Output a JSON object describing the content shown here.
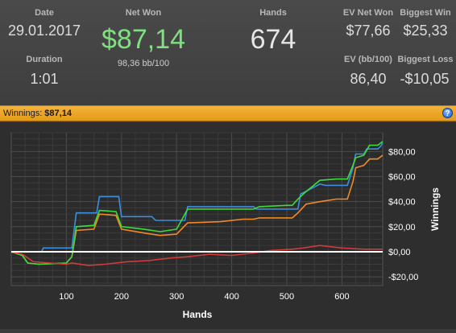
{
  "stats": {
    "date": {
      "label": "Date",
      "value": "29.01.2017"
    },
    "duration": {
      "label": "Duration",
      "value": "1:01"
    },
    "net_won": {
      "label": "Net Won",
      "value": "$87,14",
      "sub": "98,36 bb/100"
    },
    "hands": {
      "label": "Hands",
      "value": "674"
    },
    "ev_net_won": {
      "label": "EV Net Won",
      "value": "$77,66"
    },
    "biggest_win": {
      "label": "Biggest Win",
      "value": "$25,33"
    },
    "ev_bb100": {
      "label": "EV (bb/100)",
      "value": "86,40"
    },
    "biggest_loss": {
      "label": "Biggest Loss",
      "value": "-$10,05"
    }
  },
  "panel": {
    "title_label": "Winnings:",
    "title_value": "$87,14",
    "help": "?"
  },
  "colors": {
    "net_won": "#7fe07f",
    "accent_bar": "#f0a52a",
    "series_green": "#3ddc3d",
    "series_orange": "#f08a24",
    "series_blue": "#3a8fe0",
    "series_red": "#d23a3a"
  },
  "chart_data": {
    "type": "line",
    "xlabel": "Hands",
    "ylabel": "Winnings",
    "xlim": [
      0,
      674
    ],
    "ylim": [
      -27,
      95
    ],
    "x_ticks": [
      100,
      200,
      300,
      400,
      500,
      600
    ],
    "x_tick_labels": [
      "100",
      "200",
      "300",
      "400",
      "500",
      "600"
    ],
    "y_ticks": [
      -20,
      0,
      20,
      40,
      60,
      80
    ],
    "y_tick_labels": [
      "-$20,00",
      "$0,00",
      "$20,00",
      "$40,00",
      "$60,00",
      "$80,00"
    ],
    "grid": true,
    "series": [
      {
        "color": "#3a8fe0",
        "points": [
          [
            0,
            0
          ],
          [
            55,
            0
          ],
          [
            58,
            3
          ],
          [
            110,
            3
          ],
          [
            118,
            31
          ],
          [
            155,
            31
          ],
          [
            160,
            44
          ],
          [
            195,
            44
          ],
          [
            200,
            28
          ],
          [
            255,
            28
          ],
          [
            262,
            25
          ],
          [
            315,
            25
          ],
          [
            320,
            36
          ],
          [
            440,
            36
          ],
          [
            445,
            34
          ],
          [
            520,
            34
          ],
          [
            525,
            46
          ],
          [
            560,
            54
          ],
          [
            570,
            53
          ],
          [
            610,
            53
          ],
          [
            620,
            67
          ],
          [
            625,
            78
          ],
          [
            640,
            78
          ],
          [
            645,
            82
          ],
          [
            665,
            82
          ],
          [
            670,
            84
          ],
          [
            674,
            87
          ]
        ]
      },
      {
        "color": "#f08a24",
        "points": [
          [
            0,
            0
          ],
          [
            20,
            -3
          ],
          [
            30,
            -9
          ],
          [
            50,
            -10
          ],
          [
            100,
            -9
          ],
          [
            110,
            -4
          ],
          [
            118,
            17
          ],
          [
            150,
            18
          ],
          [
            160,
            30
          ],
          [
            190,
            29
          ],
          [
            200,
            18
          ],
          [
            240,
            15
          ],
          [
            270,
            13
          ],
          [
            300,
            14
          ],
          [
            320,
            23
          ],
          [
            380,
            24
          ],
          [
            420,
            26
          ],
          [
            440,
            26
          ],
          [
            450,
            27
          ],
          [
            510,
            27
          ],
          [
            520,
            31
          ],
          [
            535,
            38
          ],
          [
            560,
            40
          ],
          [
            590,
            42
          ],
          [
            610,
            42
          ],
          [
            620,
            56
          ],
          [
            625,
            67
          ],
          [
            640,
            69
          ],
          [
            650,
            74
          ],
          [
            665,
            74
          ],
          [
            674,
            77
          ]
        ]
      },
      {
        "color": "#3ddc3d",
        "points": [
          [
            0,
            0
          ],
          [
            20,
            -3
          ],
          [
            30,
            -9
          ],
          [
            50,
            -10
          ],
          [
            100,
            -9
          ],
          [
            110,
            -4
          ],
          [
            118,
            20
          ],
          [
            150,
            21
          ],
          [
            160,
            33
          ],
          [
            190,
            32
          ],
          [
            200,
            20
          ],
          [
            240,
            18
          ],
          [
            270,
            16
          ],
          [
            300,
            18
          ],
          [
            320,
            34
          ],
          [
            380,
            34
          ],
          [
            420,
            34
          ],
          [
            440,
            34
          ],
          [
            450,
            36
          ],
          [
            500,
            37
          ],
          [
            510,
            37
          ],
          [
            520,
            42
          ],
          [
            535,
            48
          ],
          [
            560,
            57
          ],
          [
            590,
            58
          ],
          [
            610,
            58
          ],
          [
            620,
            69
          ],
          [
            625,
            75
          ],
          [
            640,
            77
          ],
          [
            650,
            85
          ],
          [
            665,
            85
          ],
          [
            674,
            88
          ]
        ]
      },
      {
        "color": "#d23a3a",
        "points": [
          [
            0,
            0
          ],
          [
            20,
            -2
          ],
          [
            40,
            -8
          ],
          [
            70,
            -9
          ],
          [
            100,
            -10
          ],
          [
            110,
            -9
          ],
          [
            140,
            -11
          ],
          [
            170,
            -10
          ],
          [
            210,
            -8
          ],
          [
            250,
            -7
          ],
          [
            290,
            -5
          ],
          [
            320,
            -4
          ],
          [
            360,
            -2
          ],
          [
            400,
            -3
          ],
          [
            440,
            -1
          ],
          [
            470,
            1
          ],
          [
            510,
            2
          ],
          [
            530,
            3
          ],
          [
            560,
            5
          ],
          [
            600,
            3
          ],
          [
            640,
            2
          ],
          [
            674,
            2
          ]
        ]
      },
      {
        "color": "#ffffff",
        "points": [
          [
            0,
            0
          ],
          [
            674,
            0
          ]
        ]
      }
    ]
  }
}
